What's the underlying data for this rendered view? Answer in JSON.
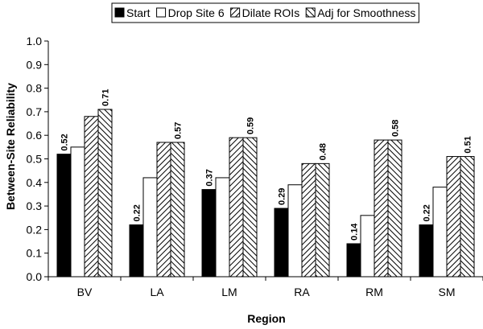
{
  "chart_data": {
    "type": "bar",
    "title": "",
    "xlabel": "Region",
    "ylabel": "Between-Site Reliability",
    "categories": [
      "BV",
      "LA",
      "LM",
      "RA",
      "RM",
      "SM"
    ],
    "ylim": [
      0,
      1.0
    ],
    "yticks": [
      "0.0",
      "0.1",
      "0.2",
      "0.3",
      "0.4",
      "0.5",
      "0.6",
      "0.7",
      "0.8",
      "0.9",
      "1.0"
    ],
    "grid": false,
    "legend_position": "top",
    "series": [
      {
        "name": "Start",
        "values": [
          0.52,
          0.22,
          0.37,
          0.29,
          0.14,
          0.22
        ],
        "labels": [
          "0.52",
          "0.22",
          "0.37",
          "0.29",
          "0.14",
          "0.22"
        ],
        "pattern": "solid-black"
      },
      {
        "name": "Drop Site 6",
        "values": [
          0.55,
          0.42,
          0.42,
          0.39,
          0.26,
          0.38
        ],
        "labels": [],
        "pattern": "white"
      },
      {
        "name": "Dilate ROIs",
        "values": [
          0.68,
          0.57,
          0.59,
          0.48,
          0.58,
          0.51
        ],
        "labels": [],
        "pattern": "diagonal-hatch-up"
      },
      {
        "name": "Adj for Smoothness",
        "values": [
          0.71,
          0.57,
          0.59,
          0.48,
          0.58,
          0.51
        ],
        "labels": [
          "0.71",
          "0.57",
          "0.59",
          "0.48",
          "0.58",
          "0.51"
        ],
        "pattern": "diagonal-hatch-down"
      }
    ]
  }
}
